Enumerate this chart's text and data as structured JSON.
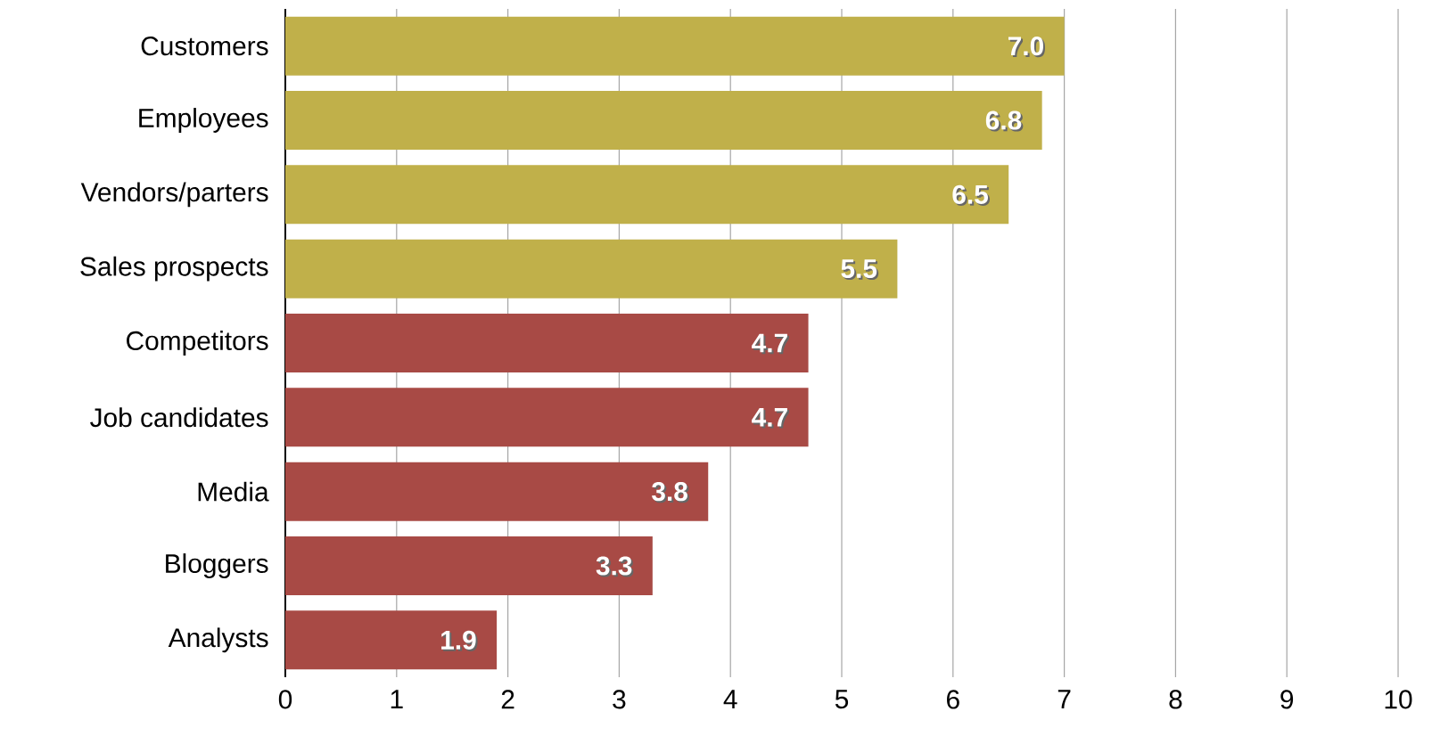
{
  "chart_data": {
    "type": "bar",
    "orientation": "horizontal",
    "categories": [
      "Customers",
      "Employees",
      "Vendors/parters",
      "Sales prospects",
      "Competitors",
      "Job candidates",
      "Media",
      "Bloggers",
      "Analysts"
    ],
    "values": [
      7.0,
      6.8,
      6.5,
      5.5,
      4.7,
      4.7,
      3.8,
      3.3,
      1.9
    ],
    "colors": [
      "#c0b04a",
      "#c0b04a",
      "#c0b04a",
      "#c0b04a",
      "#a84a45",
      "#a84a45",
      "#a84a45",
      "#a84a45",
      "#a84a45"
    ],
    "value_labels": [
      "7.0",
      "6.8",
      "6.5",
      "5.5",
      "4.7",
      "4.7",
      "3.8",
      "3.3",
      "1.9"
    ],
    "xlim": [
      0,
      10
    ],
    "xticks": [
      0,
      1,
      2,
      3,
      4,
      5,
      6,
      7,
      8,
      9,
      10
    ],
    "grid": "x"
  }
}
